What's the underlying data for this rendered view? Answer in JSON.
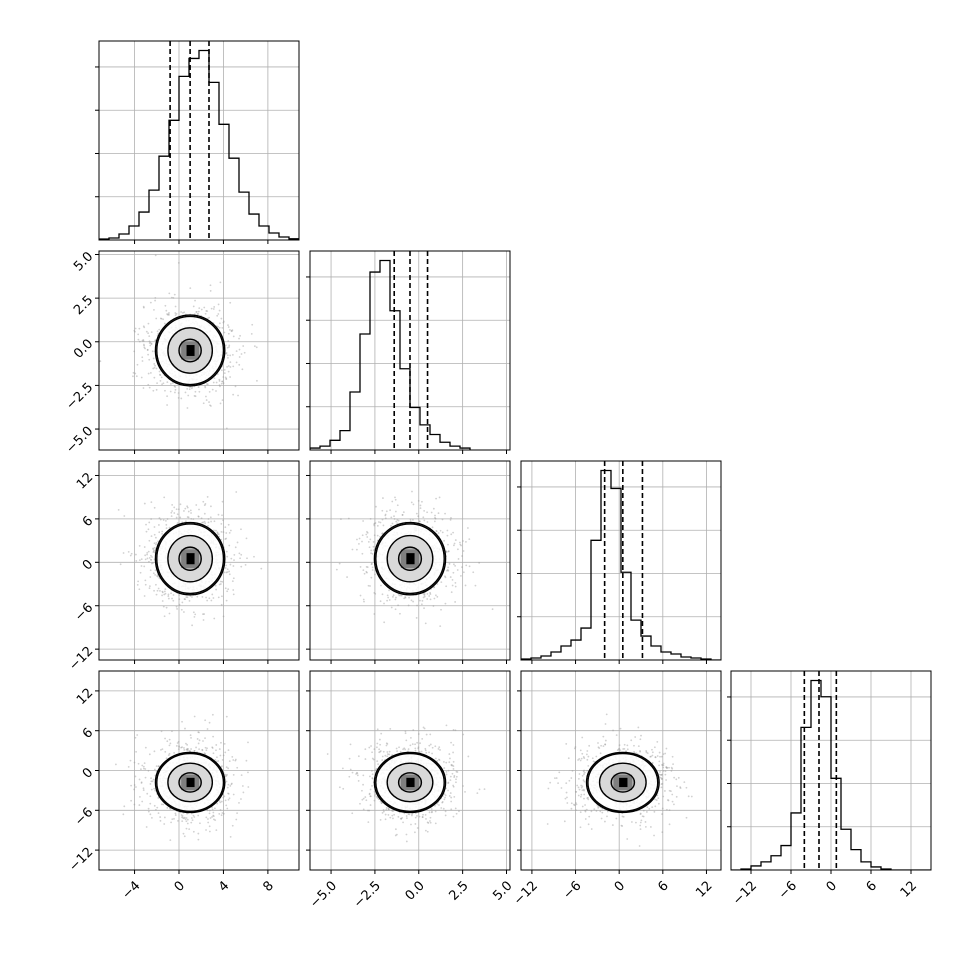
{
  "chart_data": {
    "type": "corner",
    "title": "",
    "grid": true,
    "parameters": [
      {
        "index": 0,
        "range": [
          -7.2,
          10.8
        ],
        "quantiles": [
          -0.8,
          1.0,
          2.7
        ],
        "ticks": [
          -4,
          0,
          4,
          8
        ],
        "tick_labels": [
          "−4",
          "0",
          "4",
          "8"
        ],
        "histogram": {
          "bin_width": 0.9,
          "values": [
            0.005,
            0.01,
            0.03,
            0.07,
            0.14,
            0.25,
            0.42,
            0.6,
            0.82,
            0.91,
            0.95,
            0.79,
            0.58,
            0.41,
            0.24,
            0.13,
            0.07,
            0.035,
            0.015,
            0.006
          ]
        }
      },
      {
        "index": 1,
        "range": [
          -6.2,
          5.2
        ],
        "quantiles": [
          -1.4,
          -0.5,
          0.5
        ],
        "ticks": [
          -5.0,
          -2.5,
          0.0,
          2.5,
          5.0
        ],
        "tick_labels": [
          "−5.0",
          "−2.5",
          "0.0",
          "2.5",
          "5.0"
        ],
        "histogram": {
          "bin_width": 0.57,
          "values": [
            0.01,
            0.02,
            0.05,
            0.1,
            0.3,
            0.6,
            0.92,
            0.98,
            0.72,
            0.42,
            0.22,
            0.13,
            0.08,
            0.04,
            0.02,
            0.01
          ]
        }
      },
      {
        "index": 2,
        "range": [
          -13.5,
          14.0
        ],
        "quantiles": [
          -2.0,
          0.5,
          3.2
        ],
        "ticks": [
          -12,
          -6,
          0,
          6,
          12
        ],
        "tick_labels": [
          "−12",
          "−6",
          "0",
          "6",
          "12"
        ],
        "histogram": {
          "bin_width": 1.375,
          "values": [
            0.005,
            0.01,
            0.02,
            0.04,
            0.07,
            0.1,
            0.16,
            0.6,
            0.95,
            0.86,
            0.44,
            0.2,
            0.12,
            0.07,
            0.04,
            0.03,
            0.015,
            0.01,
            0.005,
            0.0
          ]
        }
      },
      {
        "index": 3,
        "range": [
          -15.0,
          15.0
        ],
        "quantiles": [
          -4.0,
          -1.8,
          0.8
        ],
        "ticks": [
          -12,
          -6,
          0,
          6,
          12
        ],
        "tick_labels": [
          "−12",
          "−6",
          "0",
          "6",
          "12"
        ],
        "histogram": {
          "bin_width": 1.5,
          "values": [
            0.0,
            0.005,
            0.02,
            0.04,
            0.07,
            0.12,
            0.28,
            0.7,
            0.93,
            0.85,
            0.45,
            0.2,
            0.1,
            0.04,
            0.015,
            0.005,
            0.0,
            0.0,
            0.0,
            0.0
          ]
        }
      }
    ],
    "joint": {
      "centers": [
        1.0,
        -0.5,
        0.5,
        -1.8
      ],
      "spreads": [
        2.0,
        1.3,
        3.2,
        2.9
      ],
      "contour_levels_sigma": [
        0.5,
        1.0,
        1.5,
        2.0
      ],
      "scatter_color": "#9a9a9a",
      "contour_color": "#000000"
    }
  }
}
